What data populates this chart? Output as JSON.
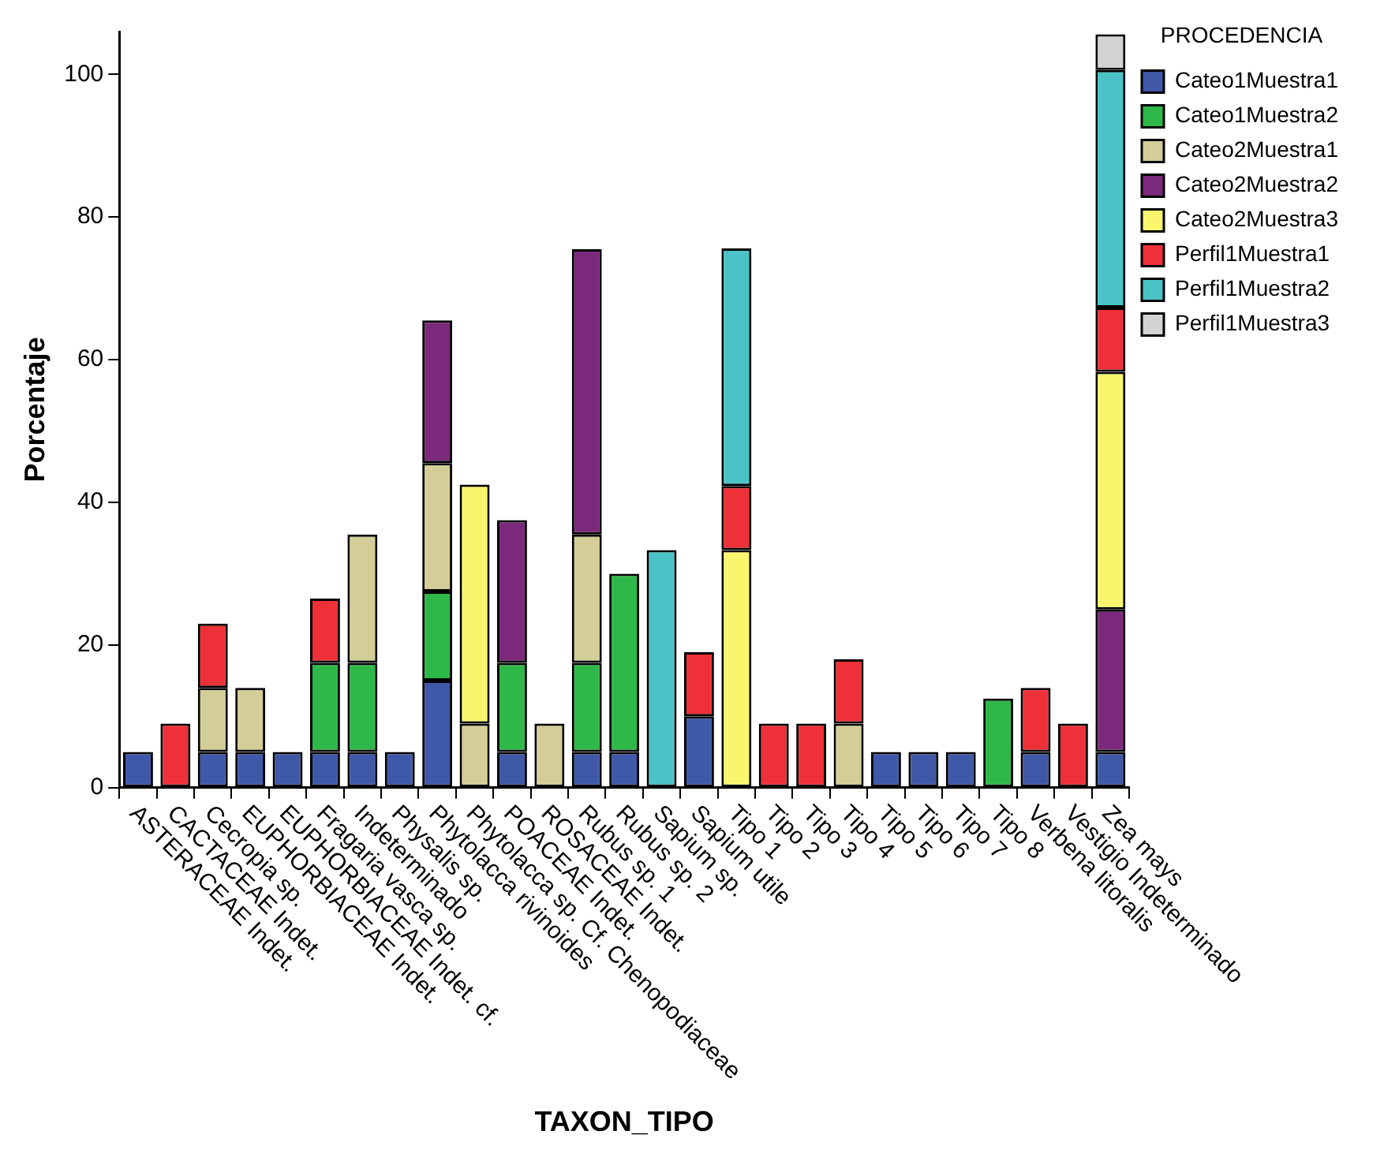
{
  "chart_data": {
    "type": "bar",
    "stacked": true,
    "xlabel": "TAXON_TIPO",
    "ylabel": "Porcentaje",
    "legend_title": "PROCEDENCIA",
    "legend": "top right",
    "grid": false,
    "categories": [
      "ASTERACEAE Indet.",
      "CACTACEAE Indet.",
      "Cecropia sp.",
      "EUPHORBIACEAE Indet.",
      "EUPHORBIACEAE Indet. cf.",
      "Fragaria vasca sp.",
      "Indeterminado",
      "Physalis sp.",
      "Phytolacca rivinoides",
      "Phytolacca sp. Cf. Chenopodiaceae",
      "POACEAE Indet.",
      "ROSACEAE Indet.",
      "Rubus sp. 1",
      "Rubus sp. 2",
      "Sapium sp.",
      "Sapium utile",
      "Tipo 1",
      "Tipo 2",
      "Tipo 3",
      "Tipo 4",
      "Tipo 5",
      "Tipo 6",
      "Tipo 7",
      "Tipo 8",
      "Verbena litoralis",
      "Vestigio Indeterminado",
      "Zea mays"
    ],
    "ylim": [
      0,
      106
    ],
    "yticks": [
      0,
      20,
      40,
      60,
      80,
      100
    ],
    "series": [
      {
        "name": "Cateo1Muestra1",
        "color": "#3f58a8",
        "values": [
          5,
          null,
          5,
          5,
          5,
          5,
          5,
          5,
          15,
          null,
          5,
          null,
          5,
          5,
          null,
          10,
          null,
          null,
          null,
          null,
          5,
          5,
          5,
          null,
          5,
          null,
          5
        ]
      },
      {
        "name": "Cateo1Muestra2",
        "color": "#2fb84a",
        "values": [
          null,
          null,
          null,
          null,
          null,
          12.5,
          12.5,
          null,
          12.5,
          null,
          12.5,
          null,
          12.5,
          25,
          null,
          null,
          null,
          null,
          null,
          null,
          null,
          null,
          null,
          12.5,
          null,
          null,
          null
        ]
      },
      {
        "name": "Cateo2Muestra1",
        "color": "#d3ce97",
        "values": [
          null,
          null,
          9,
          9,
          null,
          null,
          18,
          null,
          18,
          9,
          null,
          9,
          18,
          null,
          null,
          null,
          null,
          null,
          null,
          9,
          null,
          null,
          null,
          null,
          null,
          null,
          null
        ]
      },
      {
        "name": "Cateo2Muestra2",
        "color": "#7b2a7b",
        "values": [
          null,
          null,
          null,
          null,
          null,
          null,
          null,
          null,
          20,
          null,
          20,
          null,
          40,
          null,
          null,
          null,
          null,
          null,
          null,
          null,
          null,
          null,
          null,
          null,
          null,
          null,
          20
        ]
      },
      {
        "name": "Cateo2Muestra3",
        "color": "#f9f66e",
        "values": [
          null,
          null,
          null,
          null,
          null,
          null,
          null,
          null,
          null,
          33.5,
          null,
          null,
          null,
          null,
          null,
          null,
          33.3,
          null,
          null,
          null,
          null,
          null,
          null,
          null,
          null,
          null,
          33.3
        ]
      },
      {
        "name": "Perfil1Muestra1",
        "color": "#ee3038",
        "values": [
          null,
          9,
          9,
          null,
          null,
          9,
          null,
          null,
          null,
          null,
          null,
          null,
          null,
          null,
          null,
          9,
          9,
          9,
          9,
          9,
          null,
          null,
          null,
          null,
          9,
          9,
          9
        ]
      },
      {
        "name": "Perfil1Muestra2",
        "color": "#4bc3c6",
        "values": [
          null,
          null,
          null,
          null,
          null,
          null,
          null,
          null,
          null,
          null,
          null,
          null,
          null,
          null,
          33.3,
          null,
          33.3,
          null,
          null,
          null,
          null,
          null,
          null,
          null,
          null,
          null,
          33.3
        ]
      },
      {
        "name": "Perfil1Muestra3",
        "color": "#d3d3d3",
        "values": [
          null,
          null,
          null,
          null,
          null,
          null,
          null,
          null,
          null,
          null,
          null,
          null,
          null,
          null,
          null,
          null,
          null,
          null,
          null,
          null,
          null,
          null,
          null,
          null,
          null,
          null,
          5
        ]
      }
    ]
  }
}
